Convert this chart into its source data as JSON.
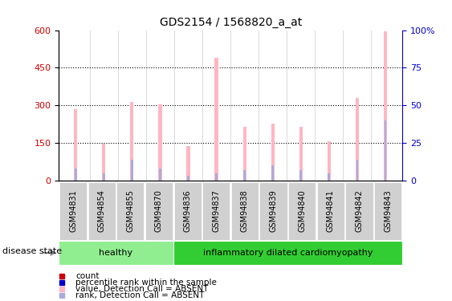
{
  "title": "GDS2154 / 1568820_a_at",
  "samples": [
    "GSM94831",
    "GSM94854",
    "GSM94855",
    "GSM94870",
    "GSM94836",
    "GSM94837",
    "GSM94838",
    "GSM94839",
    "GSM94840",
    "GSM94841",
    "GSM94842",
    "GSM94843"
  ],
  "values_absent": [
    285,
    148,
    315,
    305,
    138,
    490,
    215,
    228,
    215,
    158,
    330,
    595
  ],
  "rank_absent": [
    8,
    5,
    14,
    8,
    3,
    5,
    7,
    10,
    7,
    5,
    14,
    40
  ],
  "groups": [
    {
      "label": "healthy",
      "start": 0,
      "end": 4,
      "color": "#90EE90"
    },
    {
      "label": "inflammatory dilated cardiomyopathy",
      "start": 4,
      "end": 12,
      "color": "#32CD32"
    }
  ],
  "ylim_left": [
    0,
    600
  ],
  "ylim_right": [
    0,
    100
  ],
  "yticks_left": [
    0,
    150,
    300,
    450,
    600
  ],
  "yticks_right": [
    0,
    25,
    50,
    75,
    100
  ],
  "bar_width": 0.12,
  "rank_bar_width": 0.08,
  "color_absent_value": "#FFB6C1",
  "color_absent_rank": "#AAAADD",
  "color_count": "#CC0000",
  "color_percentile": "#0000CC",
  "legend_items": [
    {
      "label": "count",
      "color": "#CC0000"
    },
    {
      "label": "percentile rank within the sample",
      "color": "#0000CC"
    },
    {
      "label": "value, Detection Call = ABSENT",
      "color": "#FFB6C1"
    },
    {
      "label": "rank, Detection Call = ABSENT",
      "color": "#AAAADD"
    }
  ],
  "disease_state_label": "disease state",
  "xticklabel_bg": "#d0d0d0",
  "group_healthy_color": "#90EE90",
  "group_cardio_color": "#32CD32"
}
